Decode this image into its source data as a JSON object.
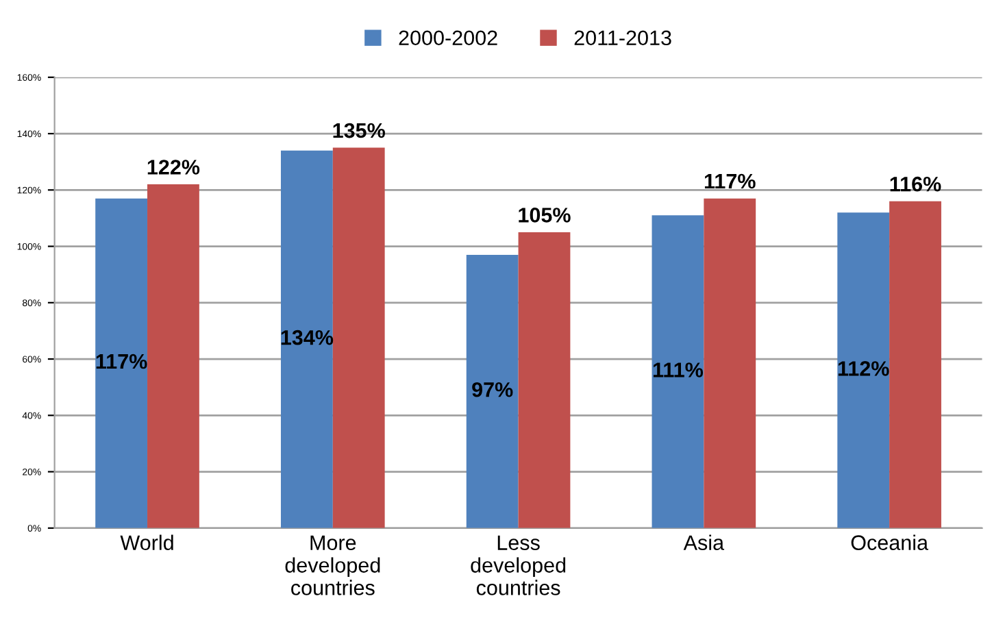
{
  "chart_data": {
    "type": "bar",
    "categories": [
      "World",
      "More\ndeveloped\ncountries",
      "Less\ndeveloped\ncountries",
      "Asia",
      "Oceania"
    ],
    "series": [
      {
        "name": "2000-2002",
        "color": "#4f81bd",
        "values": [
          117,
          134,
          97,
          111,
          112
        ],
        "value_labels": [
          "117%",
          "134%",
          "97%",
          "111%",
          "112%"
        ]
      },
      {
        "name": "2011-2013",
        "color": "#c0504d",
        "values": [
          122,
          135,
          105,
          117,
          116
        ],
        "value_labels": [
          "122%",
          "135%",
          "105%",
          "117%",
          "116%"
        ]
      }
    ],
    "ylim": [
      0,
      160
    ],
    "yticks": [
      {
        "value": 0,
        "label": "0%"
      },
      {
        "value": 20,
        "label": "20%"
      },
      {
        "value": 40,
        "label": "40%"
      },
      {
        "value": 60,
        "label": "60%"
      },
      {
        "value": 80,
        "label": "80%"
      },
      {
        "value": 100,
        "label": "100%"
      },
      {
        "value": 120,
        "label": "120%"
      },
      {
        "value": 140,
        "label": "140%"
      },
      {
        "value": 160,
        "label": "160%"
      }
    ],
    "grid": "y",
    "legend": "top"
  }
}
